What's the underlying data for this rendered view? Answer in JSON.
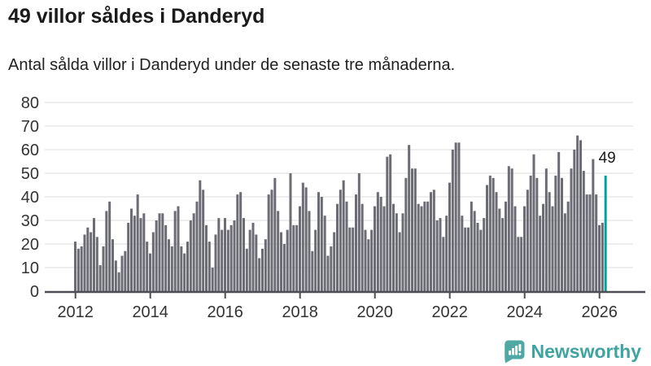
{
  "header": {
    "title": "49 villor såldes i Danderyd",
    "subtitle": "Antal sålda villor i Danderyd under de senaste tre månaderna."
  },
  "chart_data": {
    "type": "bar",
    "title": "49 villor såldes i Danderyd",
    "subtitle": "Antal sålda villor i Danderyd under de senaste tre månaderna.",
    "unit": "month",
    "start": "2012-01",
    "end": "2026-03",
    "values": [
      21,
      18,
      19,
      24,
      27,
      25,
      31,
      23,
      11,
      19,
      34,
      38,
      22,
      13,
      8,
      15,
      17,
      29,
      35,
      32,
      41,
      31,
      33,
      21,
      16,
      25,
      30,
      33,
      33,
      28,
      22,
      19,
      34,
      36,
      19,
      16,
      21,
      30,
      33,
      38,
      47,
      43,
      28,
      21,
      10,
      24,
      31,
      26,
      31,
      26,
      28,
      30,
      41,
      42,
      31,
      18,
      26,
      29,
      24,
      14,
      18,
      22,
      41,
      43,
      48,
      34,
      25,
      20,
      26,
      50,
      28,
      28,
      36,
      46,
      44,
      34,
      17,
      26,
      42,
      40,
      32,
      15,
      19,
      25,
      37,
      43,
      47,
      38,
      27,
      27,
      41,
      50,
      37,
      26,
      22,
      26,
      36,
      42,
      40,
      36,
      57,
      58,
      37,
      33,
      25,
      33,
      48,
      62,
      52,
      52,
      37,
      36,
      38,
      38,
      42,
      43,
      30,
      31,
      23,
      32,
      46,
      60,
      63,
      63,
      32,
      27,
      27,
      38,
      34,
      29,
      26,
      31,
      45,
      49,
      48,
      42,
      35,
      31,
      38,
      53,
      52,
      36,
      23,
      23,
      36,
      43,
      49,
      58,
      48,
      32,
      37,
      52,
      42,
      36,
      49,
      59,
      48,
      33,
      38,
      52,
      60,
      66,
      64,
      51,
      41,
      41,
      56,
      41,
      28,
      29,
      49
    ],
    "highlight_index": 170,
    "annotation": {
      "text": "49",
      "value": 49
    },
    "xlabel": "",
    "ylabel": "",
    "ylim": [
      0,
      80
    ],
    "yticks": [
      0,
      10,
      20,
      30,
      40,
      50,
      60,
      70,
      80
    ],
    "xticks": [
      2012,
      2014,
      2016,
      2018,
      2020,
      2022,
      2024,
      2026
    ],
    "grid": true,
    "legend": "none"
  },
  "colors": {
    "bar": "#6c6c74",
    "highlight": "#00a29b",
    "gridline": "#dddddd",
    "axis": "#4d4d55",
    "tick_label": "#333333",
    "annotation_text": "#1a1a1a",
    "brand_text": "#3ea4a0",
    "brand_icon": "#4fa8a4"
  },
  "footer": {
    "brand": "Newsworthy"
  }
}
